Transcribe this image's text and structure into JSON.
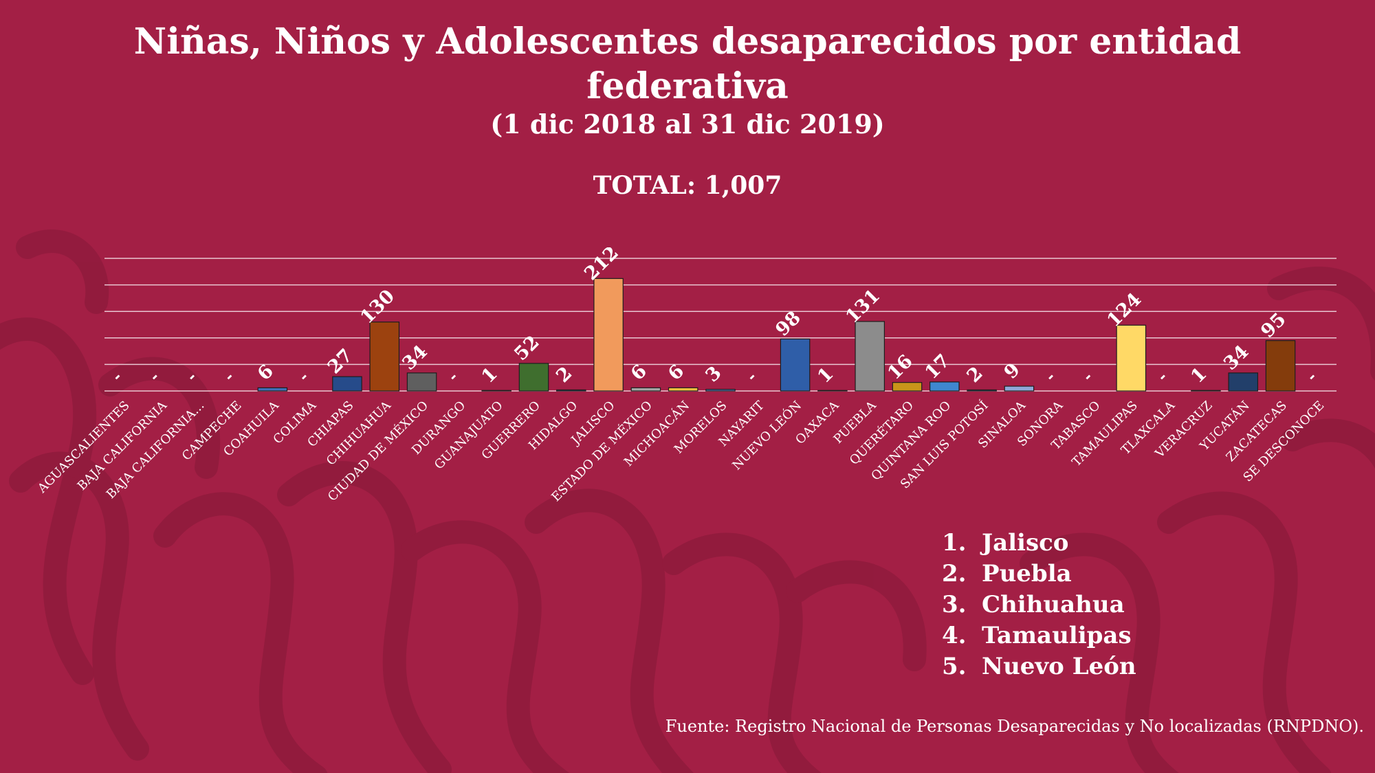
{
  "colors": {
    "background": "#a31f45",
    "pattern": "#911b3d",
    "text": "#ffffff",
    "gridline": "#e9c7d2"
  },
  "header": {
    "title_line1": "Niñas, Niños y Adolescentes desaparecidos por entidad",
    "title_line2": "federativa",
    "subtitle": "(1 dic 2018 al 31 dic 2019)",
    "total": "TOTAL: 1,007"
  },
  "ranking": [
    {
      "num": "1.",
      "name": "Jalisco"
    },
    {
      "num": "2.",
      "name": "Puebla"
    },
    {
      "num": "3.",
      "name": "Chihuahua"
    },
    {
      "num": "4.",
      "name": "Tamaulipas"
    },
    {
      "num": "5.",
      "name": "Nuevo León"
    }
  ],
  "source": "Fuente: Registro Nacional de Personas Desaparecidas y No localizadas (RNPDNO).",
  "chart_data": {
    "type": "bar",
    "title": "Niñas, Niños y Adolescentes desaparecidos por entidad federativa",
    "xlabel": "",
    "ylabel": "",
    "ylim": [
      0,
      250
    ],
    "grid": true,
    "gridlines": [
      0,
      50,
      100,
      150,
      200,
      250
    ],
    "y_ticks_shown": false,
    "legend": "none",
    "categories": [
      "AGUASCALIENTES",
      "BAJA CALIFORNIA",
      "BAJA CALIFORNIA...",
      "CAMPECHE",
      "COAHUILA",
      "COLIMA",
      "CHIAPAS",
      "CHIHUAHUA",
      "CIUDAD DE MÉXICO",
      "DURANGO",
      "GUANAJUATO",
      "GUERRERO",
      "HIDALGO",
      "JALISCO",
      "ESTADO DE MÉXICO",
      "MICHOACÁN",
      "MORELOS",
      "NAYARIT",
      "NUEVO LEÓN",
      "OAXACA",
      "PUEBLA",
      "QUERÉTARO",
      "QUINTANA ROO",
      "SAN LUIS POTOSÍ",
      "SINALOA",
      "SONORA",
      "TABASCO",
      "TAMAULIPAS",
      "TLAXCALA",
      "VERACRUZ",
      "YUCATÁN",
      "ZACATECAS",
      "SE DESCONOCE"
    ],
    "values": [
      0,
      0,
      0,
      0,
      6,
      0,
      27,
      130,
      34,
      0,
      1,
      52,
      2,
      212,
      6,
      6,
      3,
      0,
      98,
      1,
      131,
      16,
      17,
      2,
      9,
      0,
      0,
      124,
      0,
      1,
      34,
      95,
      0
    ],
    "data_labels": [
      "-",
      "-",
      "-",
      "-",
      "6",
      "-",
      "27",
      "130",
      "34",
      "-",
      "1",
      "52",
      "2",
      "212",
      "6",
      "6",
      "3",
      "-",
      "98",
      "1",
      "131",
      "16",
      "17",
      "2",
      "9",
      "-",
      "-",
      "124",
      "-",
      "1",
      "34",
      "95",
      "-"
    ],
    "bar_colors": [
      "#3a5f9c",
      "#3a5f9c",
      "#3a5f9c",
      "#3a5f9c",
      "#3f6fb8",
      "#3a5f9c",
      "#264b8a",
      "#9c420f",
      "#5f5f5f",
      "#8a6d1e",
      "#2e5478",
      "#3f6e2e",
      "#2b3f6e",
      "#f19a5c",
      "#a5a5a5",
      "#f3c03e",
      "#4f74b8",
      "#3a5f9c",
      "#2f5ea8",
      "#6a3a10",
      "#8c8c8c",
      "#c9951a",
      "#3f87d0",
      "#2a4470",
      "#8fa8d8",
      "#3a5f9c",
      "#3a5f9c",
      "#ffd966",
      "#3a5f9c",
      "#3a3a3a",
      "#223f6a",
      "#843c0c",
      "#3a5f9c"
    ]
  }
}
